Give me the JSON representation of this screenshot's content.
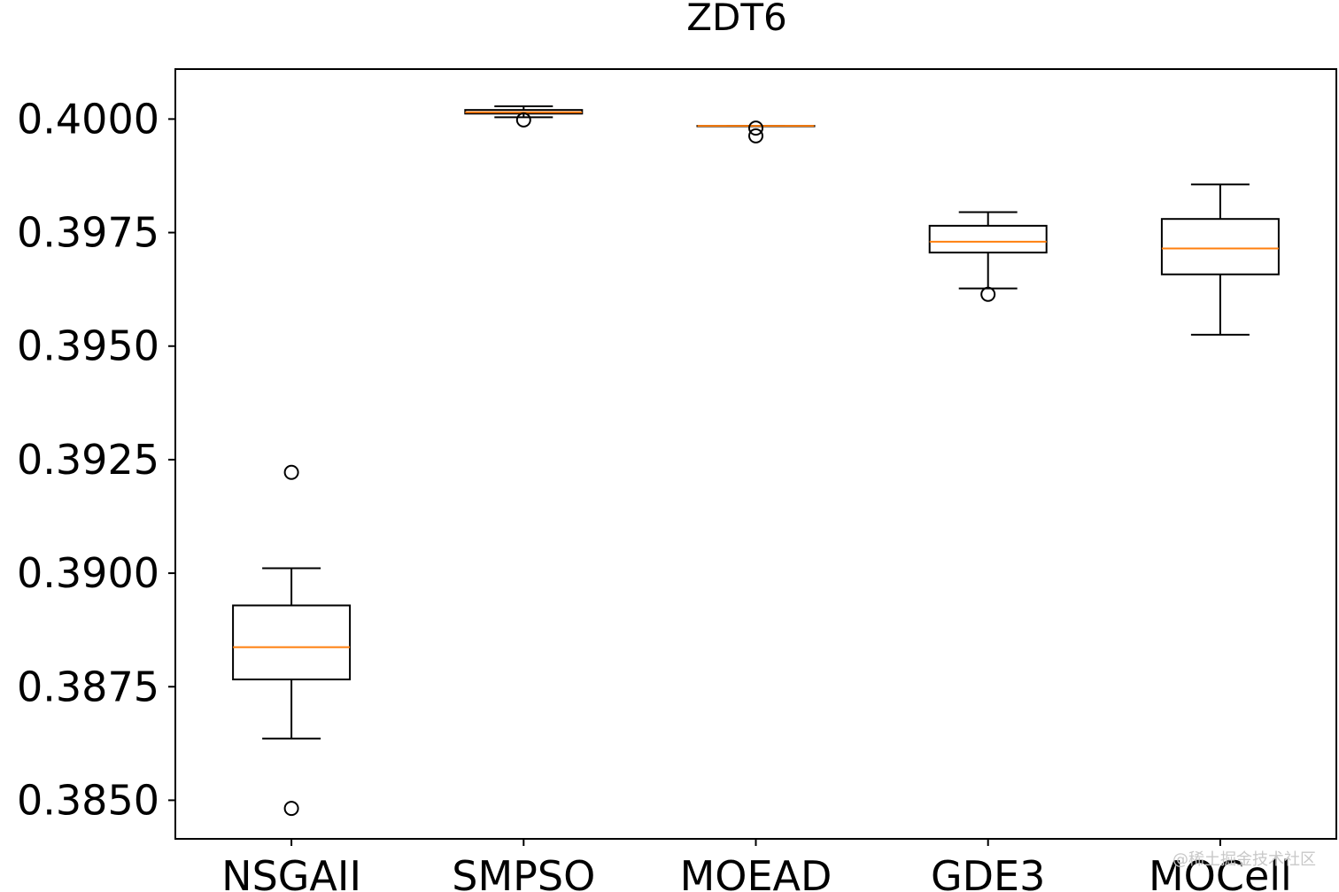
{
  "chart_data": {
    "type": "box",
    "title": "ZDT6",
    "xlabel": "",
    "ylabel": "",
    "ylim": [
      0.38415,
      0.4011
    ],
    "yticks": [
      0.385,
      0.3875,
      0.39,
      0.3925,
      0.395,
      0.3975,
      0.4
    ],
    "ytick_labels": [
      "0.3850",
      "0.3875",
      "0.3900",
      "0.3925",
      "0.3950",
      "0.3975",
      "0.4000"
    ],
    "grid": false,
    "median_color": "#ff7f0e",
    "box_color": "#000000",
    "categories": [
      "NSGAII",
      "SMPSO",
      "MOEAD",
      "GDE3",
      "MOCell"
    ],
    "boxes": [
      {
        "name": "NSGAII",
        "whisker_low": 0.38636,
        "q1": 0.38766,
        "median": 0.38837,
        "q3": 0.38929,
        "whisker_high": 0.39011,
        "outliers": [
          0.39222,
          0.38482
        ]
      },
      {
        "name": "SMPSO",
        "whisker_low": 0.40004,
        "q1": 0.40012,
        "median": 0.40015,
        "q3": 0.4002,
        "whisker_high": 0.40028,
        "outliers": [
          0.39998
        ]
      },
      {
        "name": "MOEAD",
        "whisker_low": 0.39985,
        "q1": 0.39985,
        "median": 0.39985,
        "q3": 0.39985,
        "whisker_high": 0.39985,
        "outliers": [
          0.3998,
          0.39963
        ]
      },
      {
        "name": "GDE3",
        "whisker_low": 0.39627,
        "q1": 0.39706,
        "median": 0.3973,
        "q3": 0.39765,
        "whisker_high": 0.39795,
        "outliers": [
          0.39614
        ]
      },
      {
        "name": "MOCell",
        "whisker_low": 0.39525,
        "q1": 0.39658,
        "median": 0.39715,
        "q3": 0.3978,
        "whisker_high": 0.39856,
        "outliers": []
      }
    ]
  },
  "watermark": "@稀土掘金技术社区"
}
